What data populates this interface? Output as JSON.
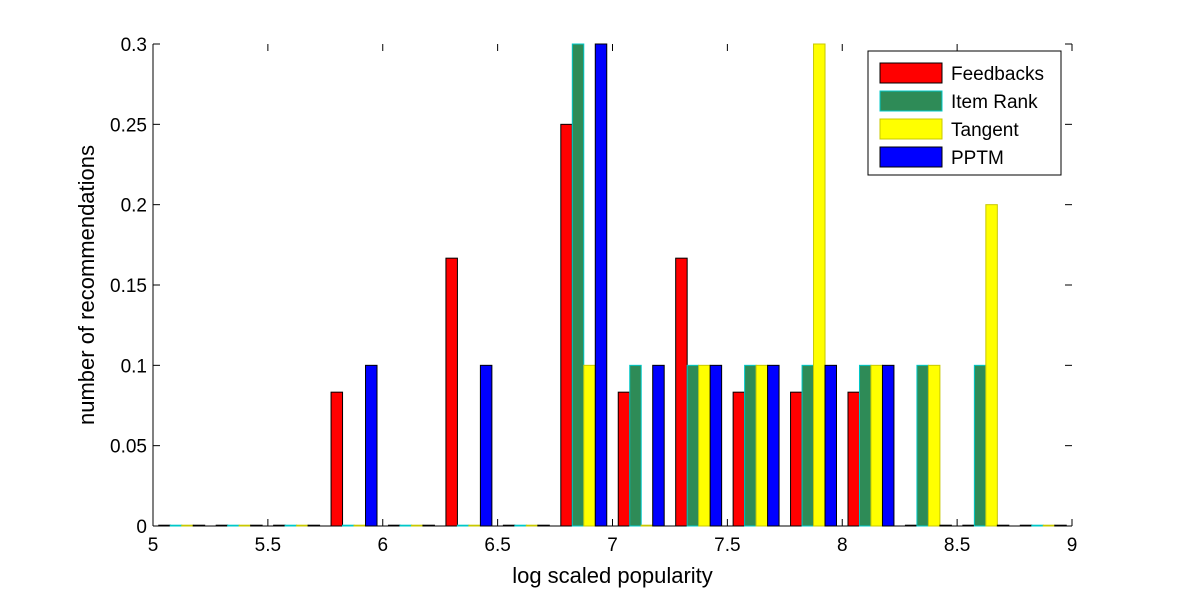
{
  "chart_data": {
    "type": "bar",
    "xlabel": "log scaled popularity",
    "ylabel": "number of recommendations",
    "xlim": [
      5,
      9
    ],
    "ylim": [
      0,
      0.3
    ],
    "xticks": [
      "5",
      "5.5",
      "6",
      "6.5",
      "7",
      "7.5",
      "8",
      "8.5",
      "9"
    ],
    "yticks": [
      "0",
      "0.05",
      "0.1",
      "0.15",
      "0.2",
      "0.25",
      "0.3"
    ],
    "bin_centers": [
      5.125,
      5.375,
      5.625,
      5.875,
      6.125,
      6.375,
      6.625,
      6.875,
      7.125,
      7.375,
      7.625,
      7.875,
      8.125,
      8.375,
      8.625,
      8.875
    ],
    "legend_position": "top-right",
    "series": [
      {
        "name": "Feedbacks",
        "color": "#ff0000",
        "edge": "#000000",
        "values": [
          0,
          0,
          0,
          0.0833,
          0,
          0.1667,
          0,
          0.25,
          0.0833,
          0.1667,
          0.0833,
          0.0833,
          0.0833,
          0,
          0,
          0
        ]
      },
      {
        "name": "Item Rank",
        "color": "#2e8b57",
        "edge": "#00c8c8",
        "values": [
          0,
          0,
          0,
          0,
          0,
          0,
          0,
          0.3,
          0.1,
          0.1,
          0.1,
          0.1,
          0.1,
          0.1,
          0.1,
          0
        ]
      },
      {
        "name": "Tangent",
        "color": "#ffff00",
        "edge": "#c8c800",
        "values": [
          0,
          0,
          0,
          0,
          0,
          0,
          0,
          0.1,
          0,
          0.1,
          0.1,
          0.3,
          0.1,
          0.1,
          0.2,
          0
        ]
      },
      {
        "name": "PPTM",
        "color": "#0000ff",
        "edge": "#000000",
        "values": [
          0,
          0,
          0,
          0.1,
          0,
          0.1,
          0,
          0.3,
          0.1,
          0.1,
          0.1,
          0.1,
          0.1,
          0,
          0,
          0
        ]
      }
    ]
  }
}
